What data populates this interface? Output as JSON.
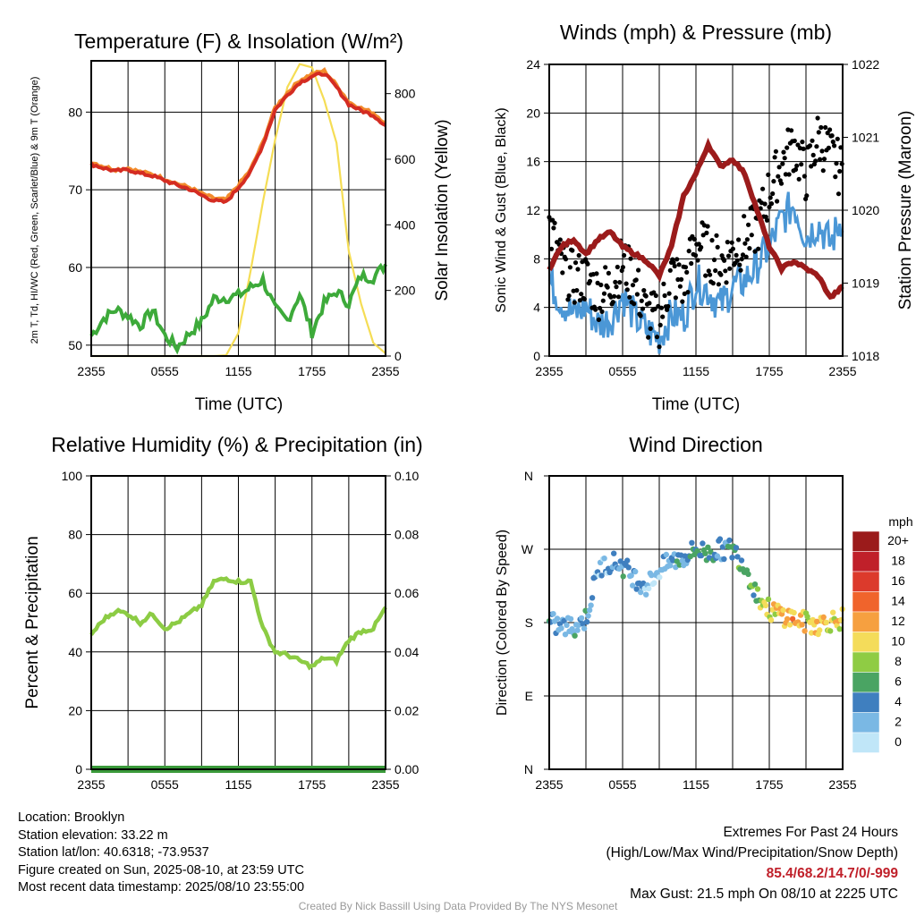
{
  "footer": {
    "location": "Location: Brooklyn",
    "elevation": "Station elevation: 33.22 m",
    "latlon": "Station lat/lon: 40.6318; -73.9537",
    "created": "Figure created on Sun, 2025-08-10, at 23:59 UTC",
    "recent": "Most recent data timestamp: 2025/08/10 23:55:00",
    "extremes_title": "Extremes For Past 24 Hours",
    "extremes_legend": "(High/Low/Max Wind/Precipitation/Snow Depth)",
    "extremes_values": "85.4/68.2/14.7/0/-999",
    "max_gust": "Max Gust: 21.5 mph On 08/10 at 2225 UTC",
    "credit": "Created By Nick Bassill Using Data Provided By The NYS Mesonet"
  },
  "colors": {
    "temp": "#d42c22",
    "temp9m": "#f28b2c",
    "dewpoint": "#3daa3a",
    "insolation": "#f5dd55",
    "wind": "#4b97d6",
    "gust": "#000000",
    "pressure": "#9b1b1b",
    "rh": "#8ccc44",
    "precip": "#3a9a3a"
  },
  "chart_data": [
    {
      "type": "line",
      "title": "Temperature (F) & Insolation (W/m²)",
      "xlabel": "Time (UTC)",
      "ylabel": "2m T, Td, HI/WC (Red, Green, Scarlet/Blue) & 9m T (Orange)",
      "ylabel2": "Solar Insolation (Yellow)",
      "x_ticks": [
        "2355",
        "0555",
        "1155",
        "1755",
        "2355"
      ],
      "ylim": [
        48.6,
        86.6
      ],
      "y_ticks": [
        50,
        60,
        70,
        80
      ],
      "ylim2": [
        0,
        900
      ],
      "y2_ticks": [
        0,
        200,
        400,
        600,
        800
      ],
      "x_hours": [
        0,
        1,
        2,
        3,
        4,
        5,
        6,
        7,
        8,
        9,
        10,
        11,
        12,
        13,
        14,
        15,
        16,
        17,
        18,
        19,
        20,
        21,
        22,
        23,
        24
      ],
      "series": [
        {
          "name": "2m T",
          "axis": "left",
          "values": [
            73.3,
            72.8,
            72.4,
            72.6,
            72.1,
            71.8,
            71.2,
            70.6,
            70.1,
            69.3,
            68.6,
            68.4,
            70.3,
            72.3,
            75.8,
            80.3,
            82.2,
            83.8,
            84.6,
            85.0,
            83.2,
            81.0,
            80.2,
            79.6,
            78.3
          ]
        },
        {
          "name": "9m T",
          "axis": "left",
          "values": [
            73.6,
            73.0,
            72.6,
            72.8,
            72.3,
            72.0,
            71.4,
            70.8,
            70.3,
            69.5,
            68.9,
            68.7,
            70.6,
            72.6,
            76.1,
            80.6,
            82.5,
            84.1,
            84.9,
            85.3,
            83.5,
            81.3,
            80.5,
            79.9,
            78.6
          ]
        },
        {
          "name": "2m Td",
          "axis": "left",
          "values": [
            51.2,
            53.4,
            54.6,
            53.8,
            52.5,
            54.5,
            51.2,
            49.7,
            51.5,
            53.0,
            56.0,
            56.1,
            56.4,
            57.4,
            58.4,
            54.6,
            53.2,
            56.6,
            51.6,
            55.4,
            56.9,
            55.4,
            58.9,
            58.7,
            60.4
          ]
        },
        {
          "name": "Solar Insolation",
          "axis": "right",
          "values": [
            0,
            0,
            0,
            0,
            0,
            0,
            0,
            0,
            0,
            0,
            0,
            2,
            70,
            260,
            470,
            660,
            820,
            890,
            880,
            780,
            650,
            320,
            160,
            40,
            8
          ]
        }
      ]
    },
    {
      "type": "line",
      "title": "Winds (mph) & Pressure (mb)",
      "xlabel": "Time (UTC)",
      "ylabel": "Sonic Wind & Gust (Blue, Black)",
      "ylabel2": "Station Pressure (Maroon)",
      "x_ticks": [
        "2355",
        "0555",
        "1155",
        "1755",
        "2355"
      ],
      "ylim": [
        0,
        24
      ],
      "y_ticks": [
        0,
        4,
        8,
        12,
        16,
        20,
        24
      ],
      "ylim2": [
        1018,
        1022
      ],
      "y2_ticks": [
        1018,
        1019,
        1020,
        1021,
        1022
      ],
      "x_hours": [
        0,
        1,
        2,
        3,
        4,
        5,
        6,
        7,
        8,
        9,
        10,
        11,
        12,
        13,
        14,
        15,
        16,
        17,
        18,
        19,
        20,
        21,
        22,
        23,
        24
      ],
      "series": [
        {
          "name": "Sonic Wind",
          "axis": "left",
          "values": [
            6.2,
            4.5,
            3.4,
            4.1,
            2.6,
            3.0,
            5.0,
            3.2,
            2.1,
            1.5,
            3.4,
            3.2,
            6.1,
            5.4,
            4.1,
            5.7,
            6.2,
            7.5,
            9.0,
            11.2,
            12.5,
            9.8,
            10.9,
            9.2,
            11.5
          ]
        },
        {
          "name": "Gust",
          "axis": "left",
          "values": [
            10.8,
            7.4,
            6.4,
            6.4,
            5.2,
            5.7,
            7.8,
            5.9,
            3.4,
            2.9,
            6.8,
            5.8,
            9.5,
            8.5,
            7.6,
            8.6,
            9.5,
            10.5,
            13.5,
            15.8,
            17.4,
            14.8,
            18.0,
            16.6,
            15.0
          ]
        },
        {
          "name": "Station Pressure",
          "axis": "right",
          "values": [
            1019.2,
            1019.5,
            1019.6,
            1019.4,
            1019.6,
            1019.7,
            1019.5,
            1019.4,
            1019.3,
            1019.1,
            1019.5,
            1020.2,
            1020.5,
            1020.9,
            1020.6,
            1020.7,
            1020.5,
            1020.0,
            1019.5,
            1019.2,
            1019.3,
            1019.2,
            1019.1,
            1018.8,
            1018.95
          ]
        }
      ]
    },
    {
      "type": "line",
      "title": "Relative Humidity (%) & Precipitation (in)",
      "xlabel": "",
      "ylabel": "Percent & Precipitation",
      "x_ticks": [
        "2355",
        "0555",
        "1155",
        "1755",
        "2355"
      ],
      "ylim": [
        0,
        100
      ],
      "y_ticks": [
        0,
        20,
        40,
        60,
        80,
        100
      ],
      "ylim2": [
        0,
        0.1
      ],
      "y2_ticks": [
        "0.00",
        "0.02",
        "0.04",
        "0.06",
        "0.08",
        "0.10"
      ],
      "x_hours": [
        0,
        1,
        2,
        3,
        4,
        5,
        6,
        7,
        8,
        9,
        10,
        11,
        12,
        13,
        14,
        15,
        16,
        17,
        18,
        19,
        20,
        21,
        22,
        23,
        24
      ],
      "series": [
        {
          "name": "Relative Humidity",
          "axis": "left",
          "values": [
            46,
            51,
            54,
            53,
            50,
            53,
            48,
            50,
            53,
            56,
            64,
            65,
            64,
            64,
            48,
            40,
            39,
            37,
            35,
            38,
            37,
            44,
            47,
            48,
            55
          ]
        },
        {
          "name": "Precipitation",
          "axis": "right",
          "values": [
            0,
            0,
            0,
            0,
            0,
            0,
            0,
            0,
            0,
            0,
            0,
            0,
            0,
            0,
            0,
            0,
            0,
            0,
            0,
            0,
            0,
            0,
            0,
            0,
            0
          ]
        }
      ]
    },
    {
      "type": "scatter",
      "title": "Wind Direction",
      "xlabel": "",
      "ylabel": "Direction (Colored By Speed)",
      "x_ticks": [
        "2355",
        "0555",
        "1155",
        "1755",
        "2355"
      ],
      "y_tick_labels": [
        "N",
        "E",
        "S",
        "W",
        "N"
      ],
      "ylim": [
        0,
        360
      ],
      "legend_title": "mph",
      "legend_labels": [
        "20+",
        "18",
        "16",
        "14",
        "12",
        "10",
        "8",
        "6",
        "4",
        "2",
        "0"
      ],
      "legend_colors": [
        "#9b1b1b",
        "#c0202a",
        "#dc3a2c",
        "#f0642c",
        "#f6a040",
        "#f4dc5a",
        "#8fcc44",
        "#4aa463",
        "#3f7fbf",
        "#7ab8e4",
        "#c0e6f8"
      ],
      "x_hours": [
        0,
        1,
        2,
        3,
        4,
        5,
        6,
        7,
        8,
        9,
        10,
        11,
        12,
        13,
        14,
        15,
        16,
        17,
        18,
        19,
        20,
        21,
        22,
        23,
        24
      ],
      "direction_deg": [
        180,
        175,
        175,
        185,
        245,
        255,
        250,
        235,
        225,
        245,
        255,
        260,
        270,
        265,
        270,
        270,
        250,
        215,
        195,
        190,
        185,
        180,
        178,
        182,
        185
      ],
      "speed_mph": [
        4,
        3,
        3,
        4,
        2,
        3,
        4,
        3,
        2,
        1,
        4,
        3,
        5,
        5,
        4,
        5,
        6,
        7,
        9,
        11,
        12,
        10,
        11,
        9,
        10
      ]
    }
  ]
}
